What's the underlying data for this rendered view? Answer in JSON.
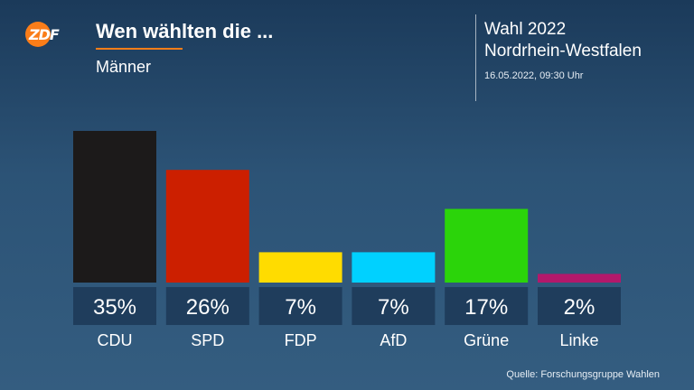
{
  "header": {
    "logo_text": "ZDF",
    "title": "Wen wählten die ...",
    "subtitle": "Männer",
    "election_line1": "Wahl 2022",
    "election_line2": "Nordrhein-Westfalen",
    "date": "16.05.2022, 09:30 Uhr"
  },
  "footer": {
    "source": "Quelle: Forschungsgruppe Wahlen"
  },
  "colors": {
    "accent": "#fa7d19",
    "label_box": "#1f3d5c"
  },
  "chart_data": {
    "type": "bar",
    "categories": [
      "CDU",
      "SPD",
      "FDP",
      "AfD",
      "Grüne",
      "Linke"
    ],
    "values": [
      35,
      26,
      7,
      7,
      17,
      2
    ],
    "value_labels": [
      "35%",
      "26%",
      "7%",
      "7%",
      "17%",
      "2%"
    ],
    "bar_colors": [
      "#1c1a1a",
      "#cc1f00",
      "#ffdc00",
      "#00d1ff",
      "#2bd40a",
      "#b3186b"
    ],
    "ylim": [
      0,
      35
    ],
    "grid": false,
    "legend": "none"
  }
}
